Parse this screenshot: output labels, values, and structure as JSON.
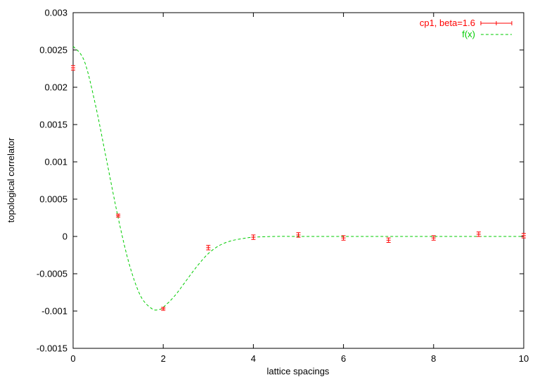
{
  "chart_data": {
    "type": "scatter",
    "title": "",
    "xlabel": "lattice spacings",
    "ylabel": "topological correlator",
    "xlim": [
      0,
      10
    ],
    "ylim": [
      -0.0015,
      0.003
    ],
    "x_ticks": [
      "0",
      "2",
      "4",
      "6",
      "8",
      "10"
    ],
    "y_ticks": [
      "-0.0015",
      "-0.001",
      "-0.0005",
      "0",
      "0.0005",
      "0.001",
      "0.0015",
      "0.002",
      "0.0025",
      "0.003"
    ],
    "grid": false,
    "legend_position": "top-right",
    "series": [
      {
        "name": "cp1, beta=1.6",
        "kind": "points-with-errorbars",
        "color": "#ff0000",
        "x": [
          0,
          1,
          2,
          3,
          4,
          5,
          6,
          7,
          8,
          9,
          10
        ],
        "y": [
          0.00226,
          0.00028,
          -0.00097,
          -0.00015,
          -1e-05,
          2e-05,
          -2e-05,
          -5e-05,
          -2e-05,
          3e-05,
          1e-05
        ],
        "err": [
          3e-05,
          2e-05,
          2e-05,
          3e-05,
          3e-05,
          3e-05,
          3e-05,
          3e-05,
          3e-05,
          3e-05,
          3e-05
        ]
      },
      {
        "name": "f(x)",
        "kind": "dashed-line",
        "color": "#00cc00",
        "x": [
          0,
          0.25,
          0.5,
          0.75,
          1.0,
          1.25,
          1.5,
          1.75,
          1.9,
          2.0,
          2.25,
          2.5,
          2.75,
          3.0,
          3.25,
          3.5,
          3.75,
          4.0,
          4.5,
          5,
          6,
          7,
          8,
          9,
          10
        ],
        "y": [
          0.00255,
          0.00235,
          0.00175,
          0.001,
          0.00025,
          -0.00038,
          -0.0008,
          -0.00097,
          -0.00098,
          -0.00095,
          -0.0008,
          -0.0006,
          -0.0004,
          -0.00023,
          -0.00012,
          -6e-05,
          -3e-05,
          -1e-05,
          0,
          0,
          0,
          0,
          0,
          0,
          0
        ]
      }
    ]
  }
}
